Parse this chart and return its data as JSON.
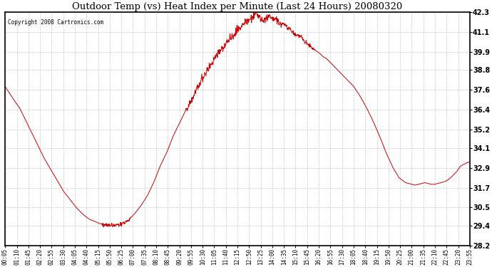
{
  "title": "Outdoor Temp (vs) Heat Index per Minute (Last 24 Hours) 20080320",
  "copyright": "Copyright 2008 Cartronics.com",
  "line_color": "#cc0000",
  "background_color": "#ffffff",
  "grid_color": "#c8c8c8",
  "y_min": 28.2,
  "y_max": 42.3,
  "y_ticks": [
    28.2,
    29.4,
    30.5,
    31.7,
    32.9,
    34.1,
    35.2,
    36.4,
    37.6,
    38.8,
    39.9,
    41.1,
    42.3
  ],
  "x_labels": [
    "00:05",
    "01:10",
    "01:45",
    "02:20",
    "02:55",
    "03:30",
    "04:05",
    "04:40",
    "05:15",
    "05:50",
    "06:25",
    "07:00",
    "07:35",
    "08:10",
    "08:45",
    "09:20",
    "09:55",
    "10:30",
    "11:05",
    "11:40",
    "12:15",
    "12:50",
    "13:25",
    "14:00",
    "14:35",
    "15:10",
    "15:45",
    "16:20",
    "16:55",
    "17:30",
    "18:05",
    "18:40",
    "19:15",
    "19:50",
    "20:25",
    "21:00",
    "21:35",
    "22:10",
    "22:45",
    "23:20",
    "23:55"
  ],
  "n_points": 1440,
  "curve_keypoints": [
    [
      0,
      37.8
    ],
    [
      20,
      37.2
    ],
    [
      30,
      36.9
    ],
    [
      45,
      36.5
    ],
    [
      60,
      35.9
    ],
    [
      80,
      35.1
    ],
    [
      100,
      34.3
    ],
    [
      120,
      33.5
    ],
    [
      150,
      32.5
    ],
    [
      180,
      31.5
    ],
    [
      200,
      31.0
    ],
    [
      220,
      30.5
    ],
    [
      240,
      30.1
    ],
    [
      260,
      29.8
    ],
    [
      290,
      29.55
    ],
    [
      310,
      29.45
    ],
    [
      320,
      29.42
    ],
    [
      330,
      29.4
    ],
    [
      340,
      29.42
    ],
    [
      350,
      29.45
    ],
    [
      360,
      29.5
    ],
    [
      380,
      29.7
    ],
    [
      400,
      30.1
    ],
    [
      420,
      30.6
    ],
    [
      440,
      31.2
    ],
    [
      460,
      32.0
    ],
    [
      480,
      33.0
    ],
    [
      500,
      33.8
    ],
    [
      520,
      34.8
    ],
    [
      540,
      35.6
    ],
    [
      560,
      36.4
    ],
    [
      580,
      37.1
    ],
    [
      600,
      37.9
    ],
    [
      620,
      38.6
    ],
    [
      640,
      39.2
    ],
    [
      660,
      39.8
    ],
    [
      680,
      40.3
    ],
    [
      700,
      40.8
    ],
    [
      720,
      41.2
    ],
    [
      740,
      41.6
    ],
    [
      760,
      41.9
    ],
    [
      770,
      42.1
    ],
    [
      775,
      42.2
    ],
    [
      780,
      42.15
    ],
    [
      790,
      41.9
    ],
    [
      800,
      41.8
    ],
    [
      810,
      41.95
    ],
    [
      820,
      42.05
    ],
    [
      830,
      41.85
    ],
    [
      840,
      41.8
    ],
    [
      855,
      41.6
    ],
    [
      865,
      41.55
    ],
    [
      875,
      41.4
    ],
    [
      885,
      41.2
    ],
    [
      895,
      41.0
    ],
    [
      905,
      40.9
    ],
    [
      915,
      40.8
    ],
    [
      925,
      40.6
    ],
    [
      935,
      40.4
    ],
    [
      945,
      40.2
    ],
    [
      960,
      40.0
    ],
    [
      975,
      39.8
    ],
    [
      985,
      39.6
    ],
    [
      995,
      39.5
    ],
    [
      1005,
      39.3
    ],
    [
      1015,
      39.1
    ],
    [
      1025,
      38.9
    ],
    [
      1035,
      38.7
    ],
    [
      1045,
      38.5
    ],
    [
      1060,
      38.2
    ],
    [
      1080,
      37.8
    ],
    [
      1100,
      37.2
    ],
    [
      1120,
      36.5
    ],
    [
      1140,
      35.7
    ],
    [
      1160,
      34.8
    ],
    [
      1180,
      33.8
    ],
    [
      1200,
      32.95
    ],
    [
      1220,
      32.3
    ],
    [
      1240,
      32.0
    ],
    [
      1260,
      31.9
    ],
    [
      1270,
      31.85
    ],
    [
      1280,
      31.9
    ],
    [
      1290,
      31.95
    ],
    [
      1300,
      32.0
    ],
    [
      1310,
      31.95
    ],
    [
      1320,
      31.9
    ],
    [
      1330,
      31.9
    ],
    [
      1340,
      31.95
    ],
    [
      1350,
      32.0
    ],
    [
      1360,
      32.05
    ],
    [
      1370,
      32.15
    ],
    [
      1380,
      32.3
    ],
    [
      1390,
      32.5
    ],
    [
      1400,
      32.7
    ],
    [
      1410,
      33.0
    ],
    [
      1420,
      33.1
    ],
    [
      1430,
      33.2
    ],
    [
      1439,
      33.25
    ]
  ]
}
